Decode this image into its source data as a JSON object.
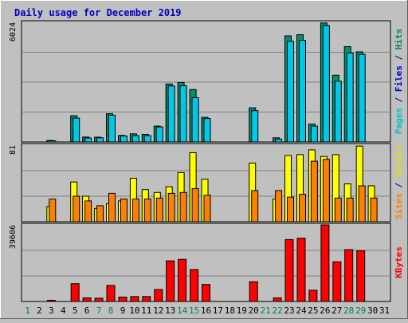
{
  "chart_data": [
    {
      "type": "bar",
      "title": "Daily usage for December 2019",
      "categories": [
        "1",
        "2",
        "3",
        "4",
        "5",
        "6",
        "7",
        "8",
        "9",
        "10",
        "11",
        "12",
        "13",
        "14",
        "15",
        "16",
        "17",
        "18",
        "19",
        "20",
        "21",
        "22",
        "23",
        "24",
        "25",
        "26",
        "27",
        "28",
        "29",
        "30",
        "31"
      ],
      "weekend_days": [
        "1",
        "7",
        "8",
        "14",
        "15",
        "21",
        "22",
        "28",
        "29"
      ],
      "ylim": [
        0,
        6024
      ],
      "ylabel_max": "6024",
      "ylabel_parts": [
        {
          "text": "Pages",
          "color": "#00c0d0"
        },
        {
          "text": " / ",
          "color": "#000080"
        },
        {
          "text": "Files",
          "color": "#0000d0"
        },
        {
          "text": " / ",
          "color": "#000080"
        },
        {
          "text": "Hits",
          "color": "#008060"
        }
      ],
      "series": [
        {
          "name": "Hits",
          "color": "#009070",
          "values": [
            0,
            0,
            75,
            0,
            1320,
            250,
            240,
            1420,
            330,
            410,
            380,
            800,
            2920,
            2990,
            2640,
            1240,
            0,
            0,
            0,
            1720,
            0,
            210,
            5340,
            5400,
            900,
            5990,
            3360,
            4800,
            4540,
            0,
            0
          ]
        },
        {
          "name": "Files",
          "color": "#00c8e8",
          "values": [
            0,
            0,
            55,
            0,
            1200,
            200,
            210,
            1350,
            300,
            320,
            320,
            760,
            2820,
            2830,
            2230,
            1180,
            0,
            0,
            0,
            1580,
            0,
            150,
            5070,
            5120,
            800,
            5860,
            3060,
            4480,
            4410,
            0,
            0
          ]
        },
        {
          "name": "Pages",
          "color": "#00c8e8",
          "values": [
            0,
            0,
            0,
            0,
            0,
            0,
            0,
            0,
            0,
            0,
            0,
            0,
            0,
            0,
            0,
            0,
            0,
            0,
            0,
            0,
            0,
            0,
            0,
            0,
            0,
            0,
            0,
            0,
            0,
            0,
            0
          ]
        }
      ]
    },
    {
      "type": "bar",
      "categories": [
        "1",
        "2",
        "3",
        "4",
        "5",
        "6",
        "7",
        "8",
        "9",
        "10",
        "11",
        "12",
        "13",
        "14",
        "15",
        "16",
        "17",
        "18",
        "19",
        "20",
        "21",
        "22",
        "23",
        "24",
        "25",
        "26",
        "27",
        "28",
        "29",
        "30",
        "31"
      ],
      "ylim": [
        0,
        81
      ],
      "ylabel_max": "81",
      "ylabel_parts": [
        {
          "text": "Sites",
          "color": "#ff8000"
        },
        {
          "text": " / ",
          "color": "#000080"
        },
        {
          "text": "Visits",
          "color": "#e0e000"
        }
      ],
      "series": [
        {
          "name": "Visits",
          "color": "#ffff00",
          "values": [
            0,
            0,
            16,
            0,
            42,
            27,
            14,
            19,
            22,
            46,
            34,
            31,
            37,
            52,
            73,
            45,
            0,
            0,
            0,
            62,
            0,
            24,
            70,
            71,
            76,
            69,
            71,
            40,
            80,
            38,
            0
          ]
        },
        {
          "name": "Sites",
          "color": "#ff8000",
          "values": [
            0,
            0,
            24,
            0,
            27,
            22,
            17,
            30,
            24,
            24,
            24,
            25,
            30,
            31,
            35,
            28,
            0,
            0,
            0,
            33,
            0,
            33,
            26,
            29,
            64,
            66,
            25,
            25,
            38,
            25,
            0
          ]
        }
      ]
    },
    {
      "type": "bar",
      "categories": [
        "1",
        "2",
        "3",
        "4",
        "5",
        "6",
        "7",
        "8",
        "9",
        "10",
        "11",
        "12",
        "13",
        "14",
        "15",
        "16",
        "17",
        "18",
        "19",
        "20",
        "21",
        "22",
        "23",
        "24",
        "25",
        "26",
        "27",
        "28",
        "29",
        "30",
        "31"
      ],
      "ylim": [
        0,
        39606
      ],
      "ylabel_max": "39606",
      "ylabel_parts": [
        {
          "text": "KBytes",
          "color": "#ff0000"
        }
      ],
      "series": [
        {
          "name": "KBytes",
          "color": "#ff0000",
          "values": [
            0,
            0,
            600,
            0,
            9200,
            1850,
            1700,
            8300,
            2250,
            2530,
            2560,
            6200,
            21000,
            21800,
            16500,
            8800,
            0,
            0,
            0,
            10200,
            0,
            1850,
            32000,
            32700,
            5800,
            39606,
            20500,
            26800,
            26300,
            0,
            0
          ]
        }
      ]
    }
  ]
}
